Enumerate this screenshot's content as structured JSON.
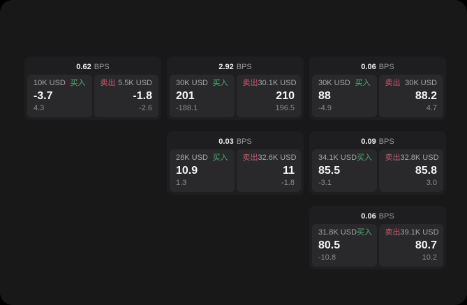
{
  "labels": {
    "buy": "买入",
    "sell": "卖出",
    "bps_suffix": "BPS"
  },
  "colors": {
    "buy": "#4caf70",
    "sell": "#c75a6e"
  },
  "cards": [
    {
      "row": 1,
      "col": 1,
      "bps": "0.62",
      "buy": {
        "amount": "10K USD",
        "price": "-3.7",
        "change": "4.3"
      },
      "sell": {
        "amount": "5.5K USD",
        "price": "-1.8",
        "change": "-2.6"
      }
    },
    {
      "row": 1,
      "col": 2,
      "bps": "2.92",
      "buy": {
        "amount": "30K USD",
        "price": "201",
        "change": "-188.1"
      },
      "sell": {
        "amount": "30.1K USD",
        "price": "210",
        "change": "196.5"
      }
    },
    {
      "row": 1,
      "col": 3,
      "bps": "0.06",
      "buy": {
        "amount": "30K USD",
        "price": "88",
        "change": "-4.9"
      },
      "sell": {
        "amount": "30K USD",
        "price": "88.2",
        "change": "4.7"
      }
    },
    {
      "row": 2,
      "col": 2,
      "bps": "0.03",
      "buy": {
        "amount": "28K USD",
        "price": "10.9",
        "change": "1.3"
      },
      "sell": {
        "amount": "32.6K USD",
        "price": "11",
        "change": "-1.8"
      }
    },
    {
      "row": 2,
      "col": 3,
      "bps": "0.09",
      "buy": {
        "amount": "34.1K USD",
        "price": "85.5",
        "change": "-3.1"
      },
      "sell": {
        "amount": "32.8K USD",
        "price": "85.8",
        "change": "3.0"
      }
    },
    {
      "row": 3,
      "col": 3,
      "bps": "0.06",
      "buy": {
        "amount": "31.8K USD",
        "price": "80.5",
        "change": "-10.8"
      },
      "sell": {
        "amount": "39.1K USD",
        "price": "80.7",
        "change": "10.2"
      }
    }
  ]
}
